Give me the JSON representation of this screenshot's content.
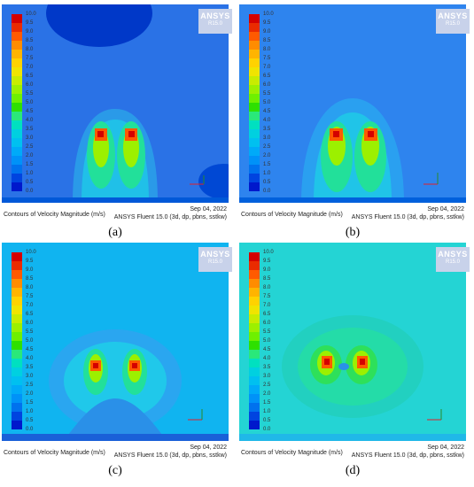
{
  "legend": {
    "ticks": [
      "10.0",
      "9.5",
      "9.0",
      "8.5",
      "8.0",
      "7.5",
      "7.0",
      "6.5",
      "6.0",
      "5.5",
      "5.0",
      "4.5",
      "4.0",
      "3.5",
      "3.0",
      "2.5",
      "2.0",
      "1.5",
      "1.0",
      "0.5",
      "0.0"
    ],
    "colors": [
      "#d40000",
      "#ea2b00",
      "#ff5a00",
      "#ff8c00",
      "#ffb400",
      "#ffd200",
      "#f0e400",
      "#c8ec00",
      "#9cf000",
      "#6ef000",
      "#2ee000",
      "#2ae87a",
      "#00e0c0",
      "#00d0e0",
      "#00c0f0",
      "#00aaf8",
      "#0092f8",
      "#0072ee",
      "#0044e0",
      "#0018cc"
    ]
  },
  "logo": {
    "title": "ANSYS",
    "version": "R15.0"
  },
  "panels": [
    {
      "id": "a",
      "caption": "Contours of Velocity Magnitude (m/s)",
      "date": "Sep 04, 2022",
      "software": "ANSYS Fluent 15.0 (3d, dp, pbns, sstkw)",
      "label": "(a)"
    },
    {
      "id": "b",
      "caption": "Contours of Velocity Magnitude (m/s)",
      "date": "Sep 04, 2022",
      "software": "ANSYS Fluent 15.0 (3d, dp, pbns, sstkw)",
      "label": "(b)"
    },
    {
      "id": "c",
      "caption": "Contours of Velocity Magnitude (m/s)",
      "date": "Sep 04, 2022",
      "software": "ANSYS Fluent 15.0 (3d, dp, pbns, sstkw)",
      "label": "(c)"
    },
    {
      "id": "d",
      "caption": "Contours of Velocity Magnitude (m/s)",
      "date": "Sep 04, 2022",
      "software": "ANSYS Fluent 15.0 (3d, dp, pbns, sstkw)",
      "label": "(d)"
    }
  ],
  "axis": {
    "x": "X",
    "y": "Y",
    "z": "Z"
  }
}
